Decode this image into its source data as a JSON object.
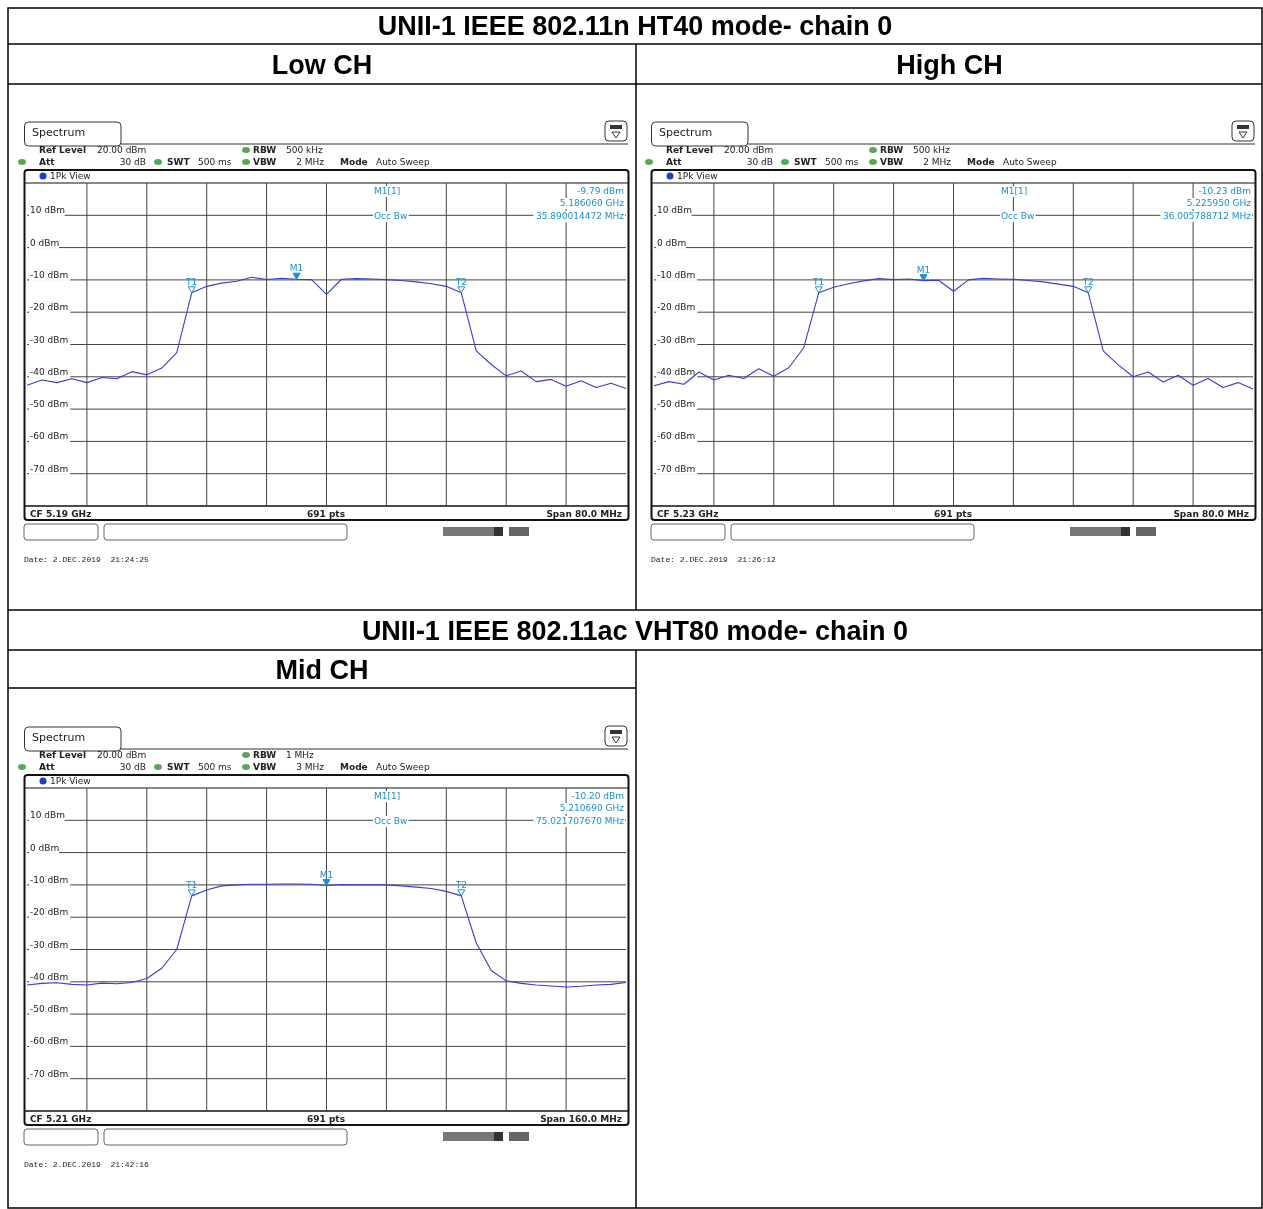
{
  "chart_data": [
    {
      "type": "line",
      "subtitle": "UNII-1 IEEE 802.11n HT40 mode- chain 0",
      "title": "Low CH",
      "categories": [
        null,
        null,
        null,
        null,
        null,
        null,
        null,
        null,
        null,
        null,
        null,
        null,
        null,
        null,
        null,
        null,
        null,
        null,
        null,
        null,
        null,
        null,
        null,
        null,
        null,
        null,
        null,
        null,
        null,
        null,
        null,
        null,
        null,
        null,
        null,
        null,
        null,
        null,
        null,
        null,
        null
      ],
      "series": [
        {
          "color": "#3b3bd6",
          "values": [
            -42.6,
            -41.0,
            -41.8,
            -40.6,
            -41.8,
            -40.2,
            -40.6,
            -38.4,
            -39.4,
            -37.3,
            -32.5,
            -14,
            -12,
            -11,
            -10.4,
            -9.2,
            -9.9,
            -9.5,
            -9.79,
            -9.9,
            -14.5,
            -9.8,
            -9.6,
            -9.7,
            -9.9,
            -10.2,
            -10.6,
            -11.2,
            -12,
            -14,
            -32,
            -36.2,
            -39.7,
            -38.2,
            -41.5,
            -40.8,
            -42.9,
            -41.2,
            -43.3,
            -42.0,
            -43.6
          ]
        }
      ],
      "ylim": [
        -80,
        20
      ],
      "yticks": [
        {
          "value": 10,
          "label": "10 dBm"
        },
        {
          "value": 0,
          "label": "0 dBm"
        },
        {
          "value": -10,
          "label": "-10 dBm"
        },
        {
          "value": -20,
          "label": "-20 dBm"
        },
        {
          "value": -30,
          "label": "-30 dBm"
        },
        {
          "value": -40,
          "label": "-40 dBm"
        },
        {
          "value": -50,
          "label": "-50 dBm"
        },
        {
          "value": -60,
          "label": "-60 dBm"
        },
        {
          "value": -70,
          "label": "-70 dBm"
        }
      ],
      "grid": true,
      "annotations": [
        "Spectrum",
        "Ref Level",
        "20.00 dBm",
        "Att",
        "30 dB",
        "SWT",
        "500 ms",
        "RBW",
        "500 kHz",
        "VBW",
        "2 MHz",
        "Mode",
        "Auto Sweep",
        "1Pk View",
        "M1[1]",
        "-9.79 dBm",
        "5.186060 GHz",
        "Occ Bw",
        "35.890014472 MHz",
        "CF 5.19 GHz",
        "691 pts",
        "Span 80.0 MHz",
        "Date: 2.DEC.2019  21:24:25",
        {
          "text": "M1",
          "y": -9.79
        },
        {
          "text": "T1",
          "y": -14
        },
        {
          "text": "T2",
          "y": -14
        }
      ]
    },
    {
      "type": "line",
      "title": "High CH",
      "categories": [
        null,
        null,
        null,
        null,
        null,
        null,
        null,
        null,
        null,
        null,
        null,
        null,
        null,
        null,
        null,
        null,
        null,
        null,
        null,
        null,
        null,
        null,
        null,
        null,
        null,
        null,
        null,
        null,
        null,
        null,
        null,
        null,
        null,
        null,
        null,
        null,
        null,
        null,
        null,
        null,
        null
      ],
      "series": [
        {
          "color": "#3b3bd6",
          "values": [
            -42.8,
            -41.5,
            -42.3,
            -38.5,
            -41.0,
            -39.5,
            -40.5,
            -37.5,
            -39.8,
            -37.2,
            -31,
            -14,
            -12.3,
            -11.2,
            -10.3,
            -9.6,
            -9.9,
            -9.7,
            -10.23,
            -10.1,
            -13.5,
            -10.0,
            -9.5,
            -9.7,
            -9.8,
            -10.2,
            -10.6,
            -11.3,
            -12,
            -14,
            -32,
            -36.3,
            -40,
            -38.5,
            -41.6,
            -39.5,
            -42.6,
            -40.5,
            -43.3,
            -41.8,
            -43.8
          ]
        }
      ],
      "ylim": [
        -80,
        20
      ],
      "yticks": [
        {
          "value": 10,
          "label": "10 dBm"
        },
        {
          "value": 0,
          "label": "0 dBm"
        },
        {
          "value": -10,
          "label": "-10 dBm"
        },
        {
          "value": -20,
          "label": "-20 dBm"
        },
        {
          "value": -30,
          "label": "-30 dBm"
        },
        {
          "value": -40,
          "label": "-40 dBm"
        },
        {
          "value": -50,
          "label": "-50 dBm"
        },
        {
          "value": -60,
          "label": "-60 dBm"
        },
        {
          "value": -70,
          "label": "-70 dBm"
        }
      ],
      "grid": true,
      "annotations": [
        "Spectrum",
        "Ref Level",
        "20.00 dBm",
        "Att",
        "30 dB",
        "SWT",
        "500 ms",
        "RBW",
        "500 kHz",
        "VBW",
        "2 MHz",
        "Mode",
        "Auto Sweep",
        "1Pk View",
        "M1[1]",
        "-10.23 dBm",
        "5.225950 GHz",
        "Occ Bw",
        "36.005788712 MHz",
        "CF 5.23 GHz",
        "691 pts",
        "Span 80.0 MHz",
        "Date: 2.DEC.2019  21:26:12",
        {
          "text": "M1",
          "y": -10.23
        },
        {
          "text": "T1",
          "y": -14
        },
        {
          "text": "T2",
          "y": -14
        }
      ]
    },
    {
      "type": "line",
      "subtitle": "UNII-1 IEEE 802.11ac VHT80 mode- chain 0",
      "title": "Mid CH",
      "categories": [
        null,
        null,
        null,
        null,
        null,
        null,
        null,
        null,
        null,
        null,
        null,
        null,
        null,
        null,
        null,
        null,
        null,
        null,
        null,
        null,
        null,
        null,
        null,
        null,
        null,
        null,
        null,
        null,
        null,
        null,
        null,
        null,
        null,
        null,
        null,
        null,
        null,
        null,
        null,
        null,
        null
      ],
      "series": [
        {
          "color": "#3b3bd6",
          "values": [
            -41,
            -40.5,
            -40.3,
            -40.8,
            -41,
            -40.4,
            -40.6,
            -40.2,
            -39,
            -35.8,
            -30,
            -13.4,
            -11.6,
            -10.3,
            -10,
            -9.8,
            -9.8,
            -9.7,
            -9.7,
            -9.8,
            -10.2,
            -9.9,
            -10,
            -10,
            -10,
            -10.3,
            -10.7,
            -11.1,
            -12,
            -13.4,
            -28,
            -36.5,
            -39.7,
            -40.5,
            -41,
            -41.3,
            -41.6,
            -41.4,
            -41,
            -40.8,
            -40.2
          ]
        }
      ],
      "ylim": [
        -80,
        20
      ],
      "yticks": [
        {
          "value": 10,
          "label": "10 dBm"
        },
        {
          "value": 0,
          "label": "0 dBm"
        },
        {
          "value": -10,
          "label": "-10 dBm"
        },
        {
          "value": -20,
          "label": "-20 dBm"
        },
        {
          "value": -30,
          "label": "-30 dBm"
        },
        {
          "value": -40,
          "label": "-40 dBm"
        },
        {
          "value": -50,
          "label": "-50 dBm"
        },
        {
          "value": -60,
          "label": "-60 dBm"
        },
        {
          "value": -70,
          "label": "-70 dBm"
        }
      ],
      "grid": true,
      "annotations": [
        "Spectrum",
        "Ref Level",
        "20.00 dBm",
        "Att",
        "30 dB",
        "SWT",
        "500 ms",
        "RBW",
        "1 MHz",
        "VBW",
        "3 MHz",
        "Mode",
        "Auto Sweep",
        "1Pk View",
        "M1[1]",
        "-10.20 dBm",
        "5.210690 GHz",
        "Occ Bw",
        "75.021707670 MHz",
        "CF 5.21 GHz",
        "691 pts",
        "Span 160.0 MHz",
        "Date: 2.DEC.2019  21:42:16",
        {
          "text": "M1",
          "y": -10.2
        },
        {
          "text": "T1",
          "y": -13.4
        },
        {
          "text": "T2",
          "y": -13.4
        }
      ]
    }
  ]
}
